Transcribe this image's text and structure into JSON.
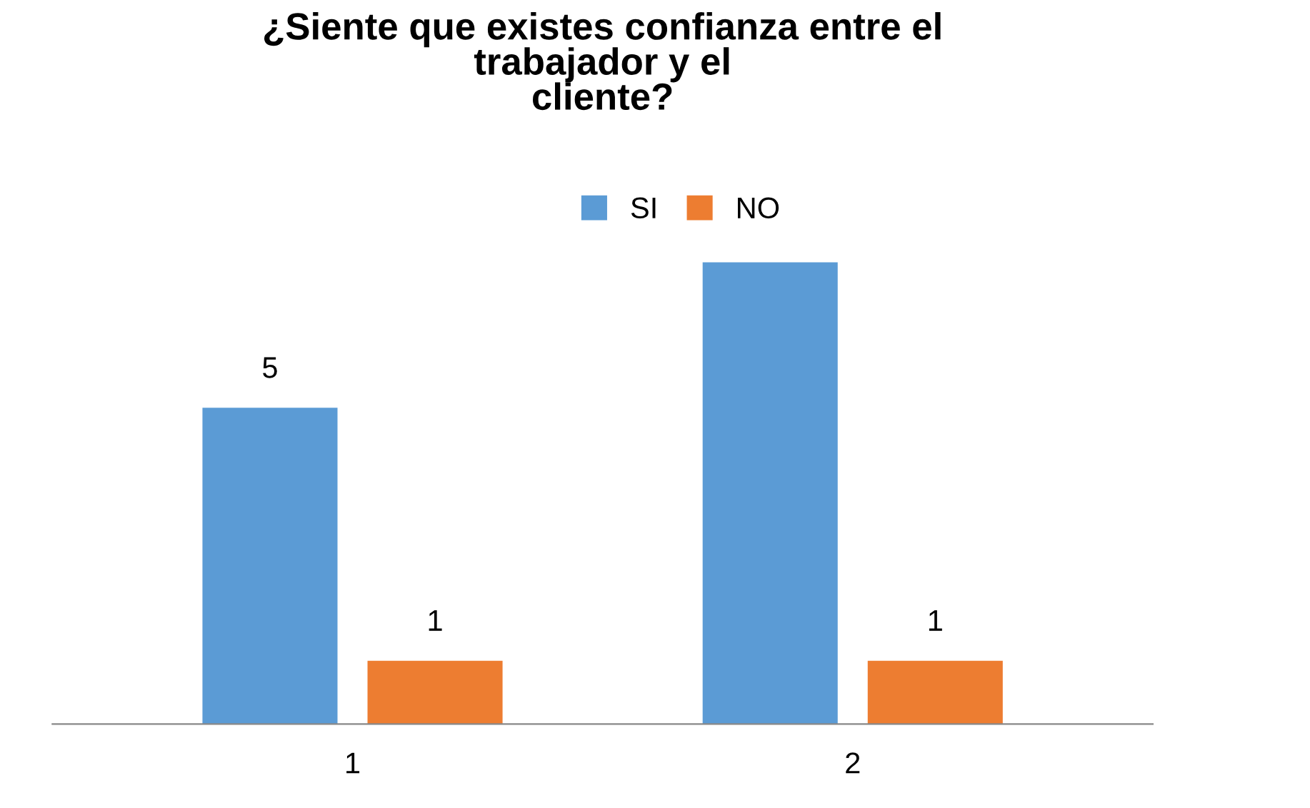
{
  "chart_data": {
    "type": "bar",
    "title": "¿Siente que existes confianza entre el\ntrabajador y el\ncliente?",
    "categories": [
      "1",
      "2"
    ],
    "legend": "top",
    "series": [
      {
        "name": "SI",
        "color": "#5b9bd5",
        "values": [
          5,
          7.3
        ],
        "value_labels": [
          "5",
          null
        ]
      },
      {
        "name": "NO",
        "color": "#ed7d31",
        "values": [
          1,
          1
        ],
        "value_labels": [
          "1",
          "1"
        ]
      }
    ]
  }
}
